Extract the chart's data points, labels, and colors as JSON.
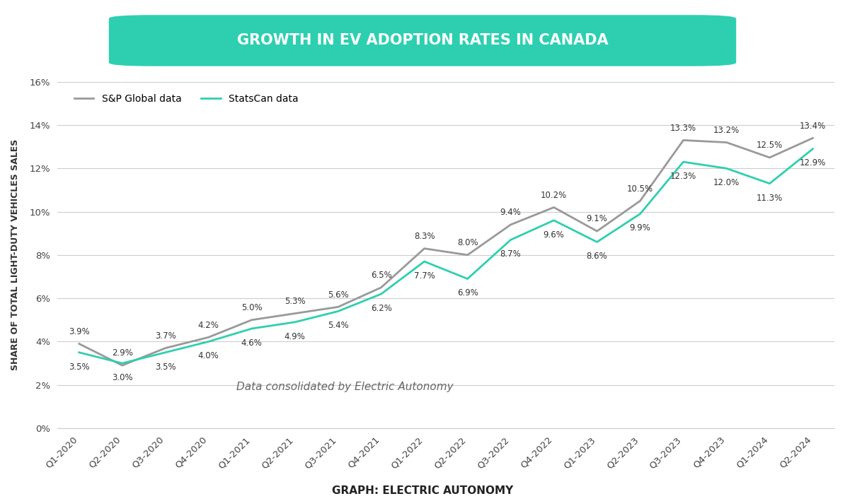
{
  "title": "GROWTH IN EV ADOPTION RATES IN CANADA",
  "xlabel_bottom": "GRAPH: ELECTRIC AUTONOMY",
  "ylabel": "SHARE OF TOTAL LIGHT-DUTY VEHICLES SALES",
  "annotation_text": "Data consolidated by Electric Autonomy",
  "categories": [
    "Q1-2020",
    "Q2-2020",
    "Q3-2020",
    "Q4-2020",
    "Q1-2021",
    "Q2-2021",
    "Q3-2021",
    "Q4-2021",
    "Q1-2022",
    "Q2-2022",
    "Q3-2022",
    "Q4-2022",
    "Q1-2023",
    "Q2-2023",
    "Q3-2023",
    "Q4-2023",
    "Q1-2024",
    "Q2-2024"
  ],
  "sp_data": [
    3.9,
    2.9,
    3.7,
    4.2,
    5.0,
    5.3,
    5.6,
    6.5,
    8.3,
    8.0,
    9.4,
    10.2,
    9.1,
    10.5,
    13.3,
    13.2,
    12.5,
    13.4
  ],
  "statscan_data": [
    3.5,
    3.0,
    3.5,
    4.0,
    4.6,
    4.9,
    5.4,
    6.2,
    7.7,
    6.9,
    8.7,
    9.6,
    8.6,
    9.9,
    12.3,
    12.0,
    11.3,
    12.9
  ],
  "sp_color": "#999999",
  "statscan_color": "#2ecfb0",
  "sp_label": "S&P Global data",
  "statscan_label": "StatsCan data",
  "ylim": [
    0,
    16
  ],
  "yticks": [
    0,
    2,
    4,
    6,
    8,
    10,
    12,
    14,
    16
  ],
  "title_bg_color": "#2ecfb0",
  "title_text_color": "#ffffff",
  "bg_color": "#ffffff",
  "grid_color": "#cccccc",
  "label_fontsize": 8.5,
  "title_fontsize": 15
}
